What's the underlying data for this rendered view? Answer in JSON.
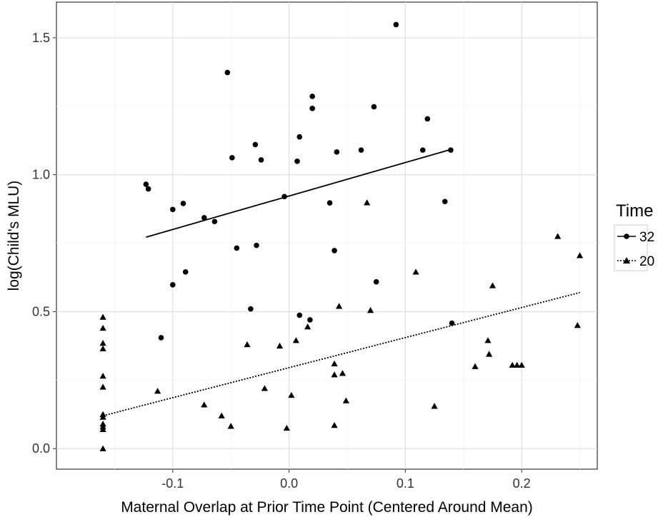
{
  "chart_data": {
    "type": "scatter",
    "xlabel": "Maternal Overlap at Prior Time Point (Centered Around Mean)",
    "ylabel": "log(Child's MLU)",
    "xlim": [
      -0.2,
      0.265
    ],
    "ylim": [
      -0.075,
      1.63
    ],
    "x_ticks": [
      -0.1,
      0.0,
      0.1,
      0.2
    ],
    "x_tick_labels": [
      "-0.1",
      "0.0",
      "0.1",
      "0.2"
    ],
    "y_ticks": [
      0.0,
      0.5,
      1.0,
      1.5
    ],
    "y_tick_labels": [
      "0.0",
      "0.5",
      "1.0",
      "1.5"
    ],
    "grid": true,
    "legend": {
      "title": "Time",
      "position": "right",
      "entries": [
        {
          "label": "32",
          "marker": "circle",
          "linestyle": "solid"
        },
        {
          "label": "20",
          "marker": "triangle",
          "linestyle": "dotted"
        }
      ]
    },
    "series": [
      {
        "name": "32",
        "marker": "circle",
        "linestyle": "solid",
        "points": [
          [
            -0.123,
            0.965
          ],
          [
            -0.121,
            0.948
          ],
          [
            -0.1,
            0.873
          ],
          [
            -0.091,
            0.895
          ],
          [
            -0.073,
            0.843
          ],
          [
            -0.064,
            0.829
          ],
          [
            -0.053,
            1.373
          ],
          [
            -0.049,
            1.062
          ],
          [
            -0.029,
            1.11
          ],
          [
            -0.024,
            1.054
          ],
          [
            -0.004,
            0.92
          ],
          [
            0.007,
            1.049
          ],
          [
            0.009,
            1.138
          ],
          [
            0.02,
            1.286
          ],
          [
            0.02,
            1.242
          ],
          [
            0.035,
            0.897
          ],
          [
            0.041,
            1.083
          ],
          [
            0.062,
            1.09
          ],
          [
            0.073,
            1.248
          ],
          [
            0.092,
            1.548
          ],
          [
            0.115,
            1.09
          ],
          [
            0.119,
            1.204
          ],
          [
            0.134,
            0.902
          ],
          [
            0.139,
            1.09
          ],
          [
            -0.045,
            0.732
          ],
          [
            -0.028,
            0.742
          ],
          [
            0.039,
            0.723
          ],
          [
            -0.089,
            0.645
          ],
          [
            -0.1,
            0.598
          ],
          [
            0.075,
            0.609
          ],
          [
            -0.033,
            0.51
          ],
          [
            0.009,
            0.487
          ],
          [
            0.018,
            0.47
          ],
          [
            -0.11,
            0.405
          ],
          [
            0.14,
            0.458
          ]
        ],
        "fit": [
          [
            -0.123,
            0.772
          ],
          [
            0.139,
            1.092
          ]
        ]
      },
      {
        "name": "20",
        "marker": "triangle",
        "linestyle": "dotted",
        "points": [
          [
            -0.16,
            0.48
          ],
          [
            -0.16,
            0.44
          ],
          [
            -0.16,
            0.385
          ],
          [
            -0.16,
            0.365
          ],
          [
            -0.16,
            0.265
          ],
          [
            -0.16,
            0.225
          ],
          [
            -0.16,
            0.125
          ],
          [
            -0.16,
            0.115
          ],
          [
            -0.16,
            0.09
          ],
          [
            -0.16,
            0.08
          ],
          [
            -0.16,
            0.07
          ],
          [
            -0.16,
            0.0
          ],
          [
            -0.113,
            0.21
          ],
          [
            -0.073,
            0.16
          ],
          [
            -0.058,
            0.12
          ],
          [
            -0.05,
            0.082
          ],
          [
            -0.036,
            0.38
          ],
          [
            -0.021,
            0.22
          ],
          [
            -0.008,
            0.375
          ],
          [
            -0.002,
            0.075
          ],
          [
            0.002,
            0.195
          ],
          [
            0.006,
            0.395
          ],
          [
            0.016,
            0.445
          ],
          [
            0.039,
            0.085
          ],
          [
            0.039,
            0.31
          ],
          [
            0.039,
            0.27
          ],
          [
            0.043,
            0.52
          ],
          [
            0.046,
            0.275
          ],
          [
            0.049,
            0.175
          ],
          [
            0.067,
            0.898
          ],
          [
            0.07,
            0.505
          ],
          [
            0.109,
            0.645
          ],
          [
            0.125,
            0.155
          ],
          [
            0.16,
            0.3
          ],
          [
            0.171,
            0.395
          ],
          [
            0.172,
            0.345
          ],
          [
            0.175,
            0.595
          ],
          [
            0.192,
            0.305
          ],
          [
            0.196,
            0.305
          ],
          [
            0.2,
            0.305
          ],
          [
            0.231,
            0.775
          ],
          [
            0.248,
            0.45
          ],
          [
            0.25,
            0.705
          ]
        ],
        "fit": [
          [
            -0.16,
            0.12
          ],
          [
            0.25,
            0.57
          ]
        ]
      }
    ]
  }
}
